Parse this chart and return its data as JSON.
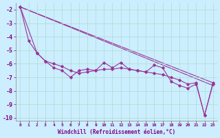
{
  "xlabel": "Windchill (Refroidissement éolien,°C)",
  "background_color": "#cceeff",
  "grid_color": "#aaddcc",
  "line_color": "#993399",
  "xlim": [
    -0.5,
    23.5
  ],
  "ylim": [
    -10.2,
    -1.5
  ],
  "yticks": [
    -10,
    -9,
    -8,
    -7,
    -6,
    -5,
    -4,
    -3,
    -2
  ],
  "xticks": [
    0,
    1,
    2,
    3,
    4,
    5,
    6,
    7,
    8,
    9,
    10,
    11,
    12,
    13,
    14,
    15,
    16,
    17,
    18,
    19,
    20,
    21,
    22,
    23
  ],
  "xtick_labels": [
    "0",
    "1",
    "2",
    "3",
    "4",
    "5",
    "6",
    "7",
    "8",
    "9",
    "10",
    "11",
    "12",
    "13",
    "14",
    "15",
    "16",
    "17",
    "18",
    "19",
    "20",
    "21",
    "22",
    "23"
  ],
  "main_x": [
    0,
    1,
    2,
    3,
    4,
    5,
    6,
    7,
    8,
    9,
    10,
    11,
    12,
    13,
    14,
    15,
    16,
    17,
    18,
    19,
    20,
    21,
    22,
    23
  ],
  "main_y": [
    -1.8,
    -4.3,
    -5.2,
    -5.8,
    -6.3,
    -6.5,
    -7.0,
    -6.5,
    -6.4,
    -6.5,
    -5.9,
    -6.3,
    -5.9,
    -6.4,
    -6.5,
    -6.6,
    -6.1,
    -6.3,
    -7.3,
    -7.6,
    -7.8,
    -7.5,
    -9.8,
    -7.4
  ],
  "line2_x": [
    0,
    2,
    3,
    4,
    5,
    6,
    7,
    8,
    9,
    10,
    11,
    12,
    13,
    14,
    15,
    16,
    17,
    18,
    19,
    20,
    21,
    22,
    23
  ],
  "line2_y": [
    -1.8,
    -5.2,
    -5.8,
    -6.0,
    -6.2,
    -6.5,
    -6.7,
    -6.6,
    -6.5,
    -6.4,
    -6.4,
    -6.3,
    -6.4,
    -6.5,
    -6.6,
    -6.7,
    -6.8,
    -7.0,
    -7.2,
    -7.5,
    -7.4,
    -9.8,
    -7.5
  ],
  "trend1_x": [
    0,
    23
  ],
  "trend1_y": [
    -1.8,
    -7.4
  ],
  "trend2_x": [
    0,
    23
  ],
  "trend2_y": [
    -1.8,
    -7.6
  ]
}
